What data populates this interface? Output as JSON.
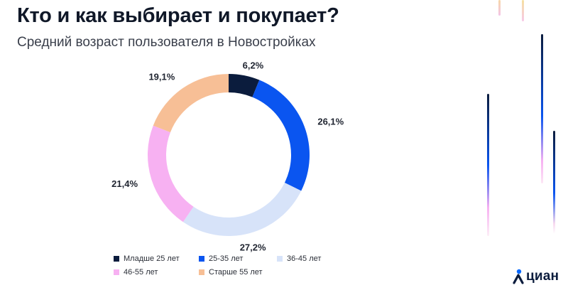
{
  "title": "Кто и как выбирает и покупает?",
  "subtitle": "Средний возраст пользователя в Новостройках",
  "brand": {
    "name": "циан",
    "color": "#0b1c3d",
    "accent": "#0468ff"
  },
  "chart_data": {
    "type": "pie",
    "donut": true,
    "categories": [
      "Младше 25 лет",
      "25-35 лет",
      "36-45 лет",
      "46-55 лет",
      "Старше 55 лет"
    ],
    "values": [
      6.2,
      26.1,
      27.2,
      21.4,
      19.1
    ],
    "labels": [
      "6,2%",
      "26,1%",
      "27,2%",
      "21,4%",
      "19,1%"
    ],
    "colors": [
      "#0b1c3d",
      "#0a55f0",
      "#d7e3f9",
      "#f7b1f2",
      "#f7bf96"
    ],
    "legend_position": "bottom"
  }
}
